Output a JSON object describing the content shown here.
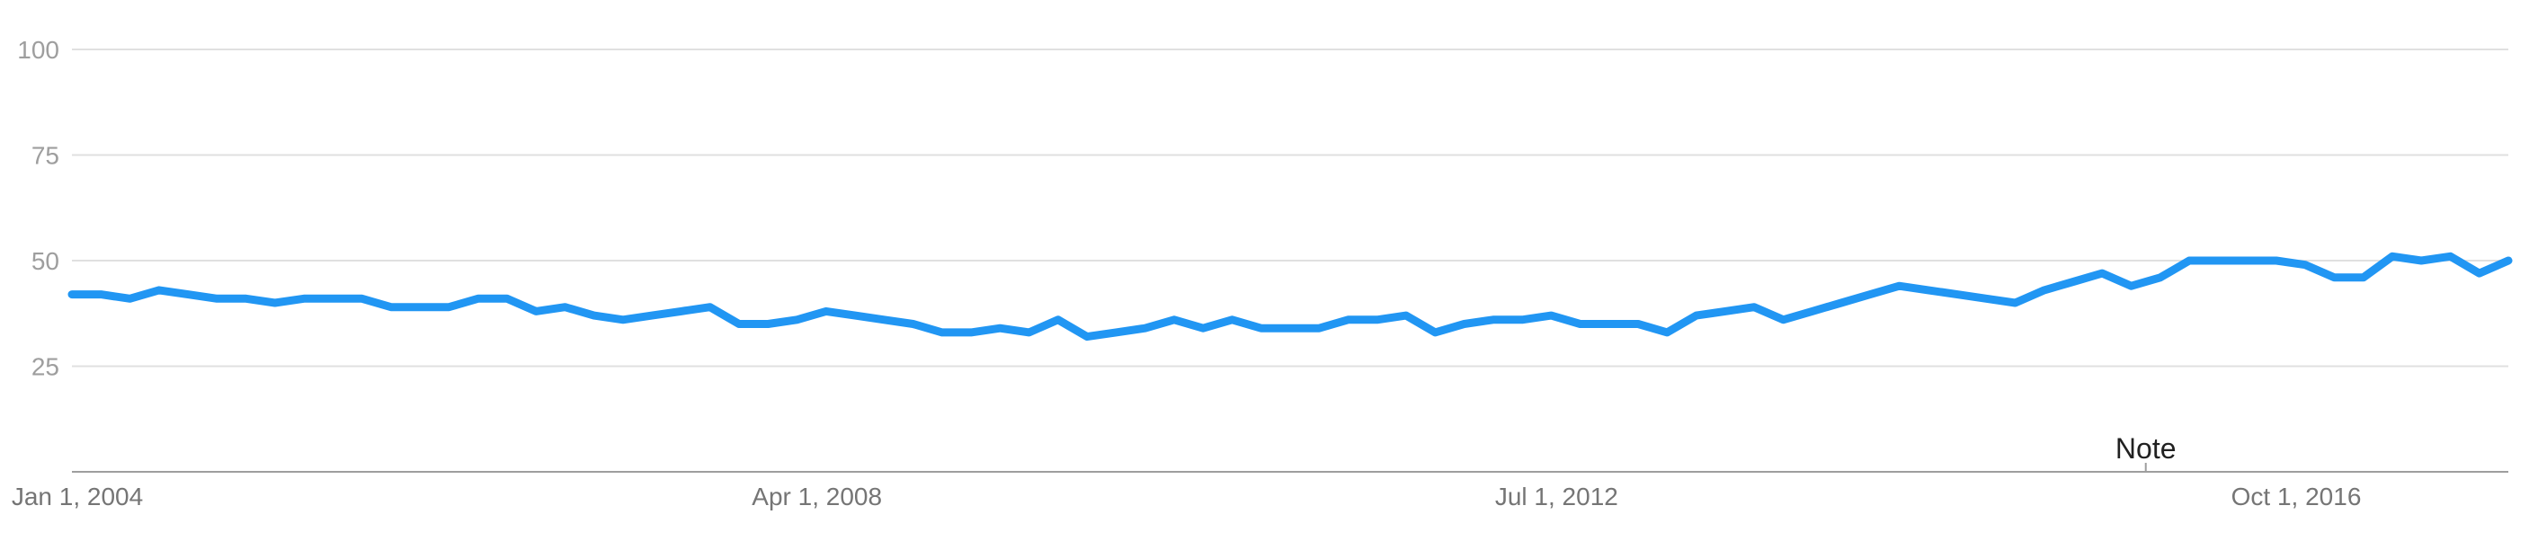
{
  "chart_data": {
    "type": "line",
    "title": "",
    "xlabel": "",
    "ylabel": "",
    "ylim": [
      0,
      100
    ],
    "yticks": [
      "25",
      "50",
      "75",
      "100"
    ],
    "xticks": [
      {
        "label": "Jan 1, 2004",
        "x": "2004-01"
      },
      {
        "label": "Apr 1, 2008",
        "x": "2008-04"
      },
      {
        "label": "Jul 1, 2012",
        "x": "2012-07"
      },
      {
        "label": "Oct 1, 2016",
        "x": "2016-10"
      }
    ],
    "x_range": [
      "2004-01",
      "2018-01"
    ],
    "grid": true,
    "line_color": "#2196f3",
    "annotation": {
      "text": "Note",
      "x": "2015-12"
    },
    "series": [
      {
        "points": [
          [
            "2004-01",
            42
          ],
          [
            "2004-03",
            42
          ],
          [
            "2004-05",
            41
          ],
          [
            "2004-07",
            43
          ],
          [
            "2004-09",
            42
          ],
          [
            "2004-11",
            41
          ],
          [
            "2005-01",
            41
          ],
          [
            "2005-03",
            40
          ],
          [
            "2005-05",
            41
          ],
          [
            "2005-07",
            41
          ],
          [
            "2005-09",
            41
          ],
          [
            "2005-11",
            39
          ],
          [
            "2006-01",
            39
          ],
          [
            "2006-03",
            39
          ],
          [
            "2006-05",
            41
          ],
          [
            "2006-07",
            41
          ],
          [
            "2006-09",
            38
          ],
          [
            "2006-11",
            39
          ],
          [
            "2007-01",
            37
          ],
          [
            "2007-03",
            36
          ],
          [
            "2007-05",
            37
          ],
          [
            "2007-07",
            38
          ],
          [
            "2007-09",
            39
          ],
          [
            "2007-11",
            35
          ],
          [
            "2008-01",
            35
          ],
          [
            "2008-03",
            36
          ],
          [
            "2008-05",
            38
          ],
          [
            "2008-07",
            37
          ],
          [
            "2008-09",
            36
          ],
          [
            "2008-11",
            35
          ],
          [
            "2009-01",
            33
          ],
          [
            "2009-03",
            33
          ],
          [
            "2009-05",
            34
          ],
          [
            "2009-07",
            33
          ],
          [
            "2009-09",
            36
          ],
          [
            "2009-11",
            32
          ],
          [
            "2010-01",
            33
          ],
          [
            "2010-03",
            34
          ],
          [
            "2010-05",
            36
          ],
          [
            "2010-07",
            34
          ],
          [
            "2010-09",
            36
          ],
          [
            "2010-11",
            34
          ],
          [
            "2011-01",
            34
          ],
          [
            "2011-03",
            34
          ],
          [
            "2011-05",
            36
          ],
          [
            "2011-07",
            36
          ],
          [
            "2011-09",
            37
          ],
          [
            "2011-11",
            33
          ],
          [
            "2012-01",
            35
          ],
          [
            "2012-03",
            36
          ],
          [
            "2012-05",
            36
          ],
          [
            "2012-07",
            37
          ],
          [
            "2012-09",
            35
          ],
          [
            "2012-11",
            35
          ],
          [
            "2013-01",
            35
          ],
          [
            "2013-03",
            33
          ],
          [
            "2013-05",
            37
          ],
          [
            "2013-07",
            38
          ],
          [
            "2013-09",
            39
          ],
          [
            "2013-11",
            36
          ],
          [
            "2014-01",
            38
          ],
          [
            "2014-03",
            40
          ],
          [
            "2014-05",
            42
          ],
          [
            "2014-07",
            44
          ],
          [
            "2014-09",
            43
          ],
          [
            "2014-11",
            42
          ],
          [
            "2015-01",
            41
          ],
          [
            "2015-03",
            40
          ],
          [
            "2015-05",
            43
          ],
          [
            "2015-07",
            45
          ],
          [
            "2015-09",
            47
          ],
          [
            "2015-11",
            44
          ],
          [
            "2016-01",
            46
          ],
          [
            "2016-03",
            50
          ],
          [
            "2016-05",
            50
          ],
          [
            "2016-07",
            50
          ],
          [
            "2016-09",
            50
          ],
          [
            "2016-11",
            49
          ],
          [
            "2017-01",
            46
          ],
          [
            "2017-03",
            46
          ],
          [
            "2017-05",
            51
          ],
          [
            "2017-07",
            50
          ],
          [
            "2017-09",
            51
          ],
          [
            "2017-11",
            47
          ],
          [
            "2018-01",
            50
          ]
        ]
      }
    ]
  }
}
